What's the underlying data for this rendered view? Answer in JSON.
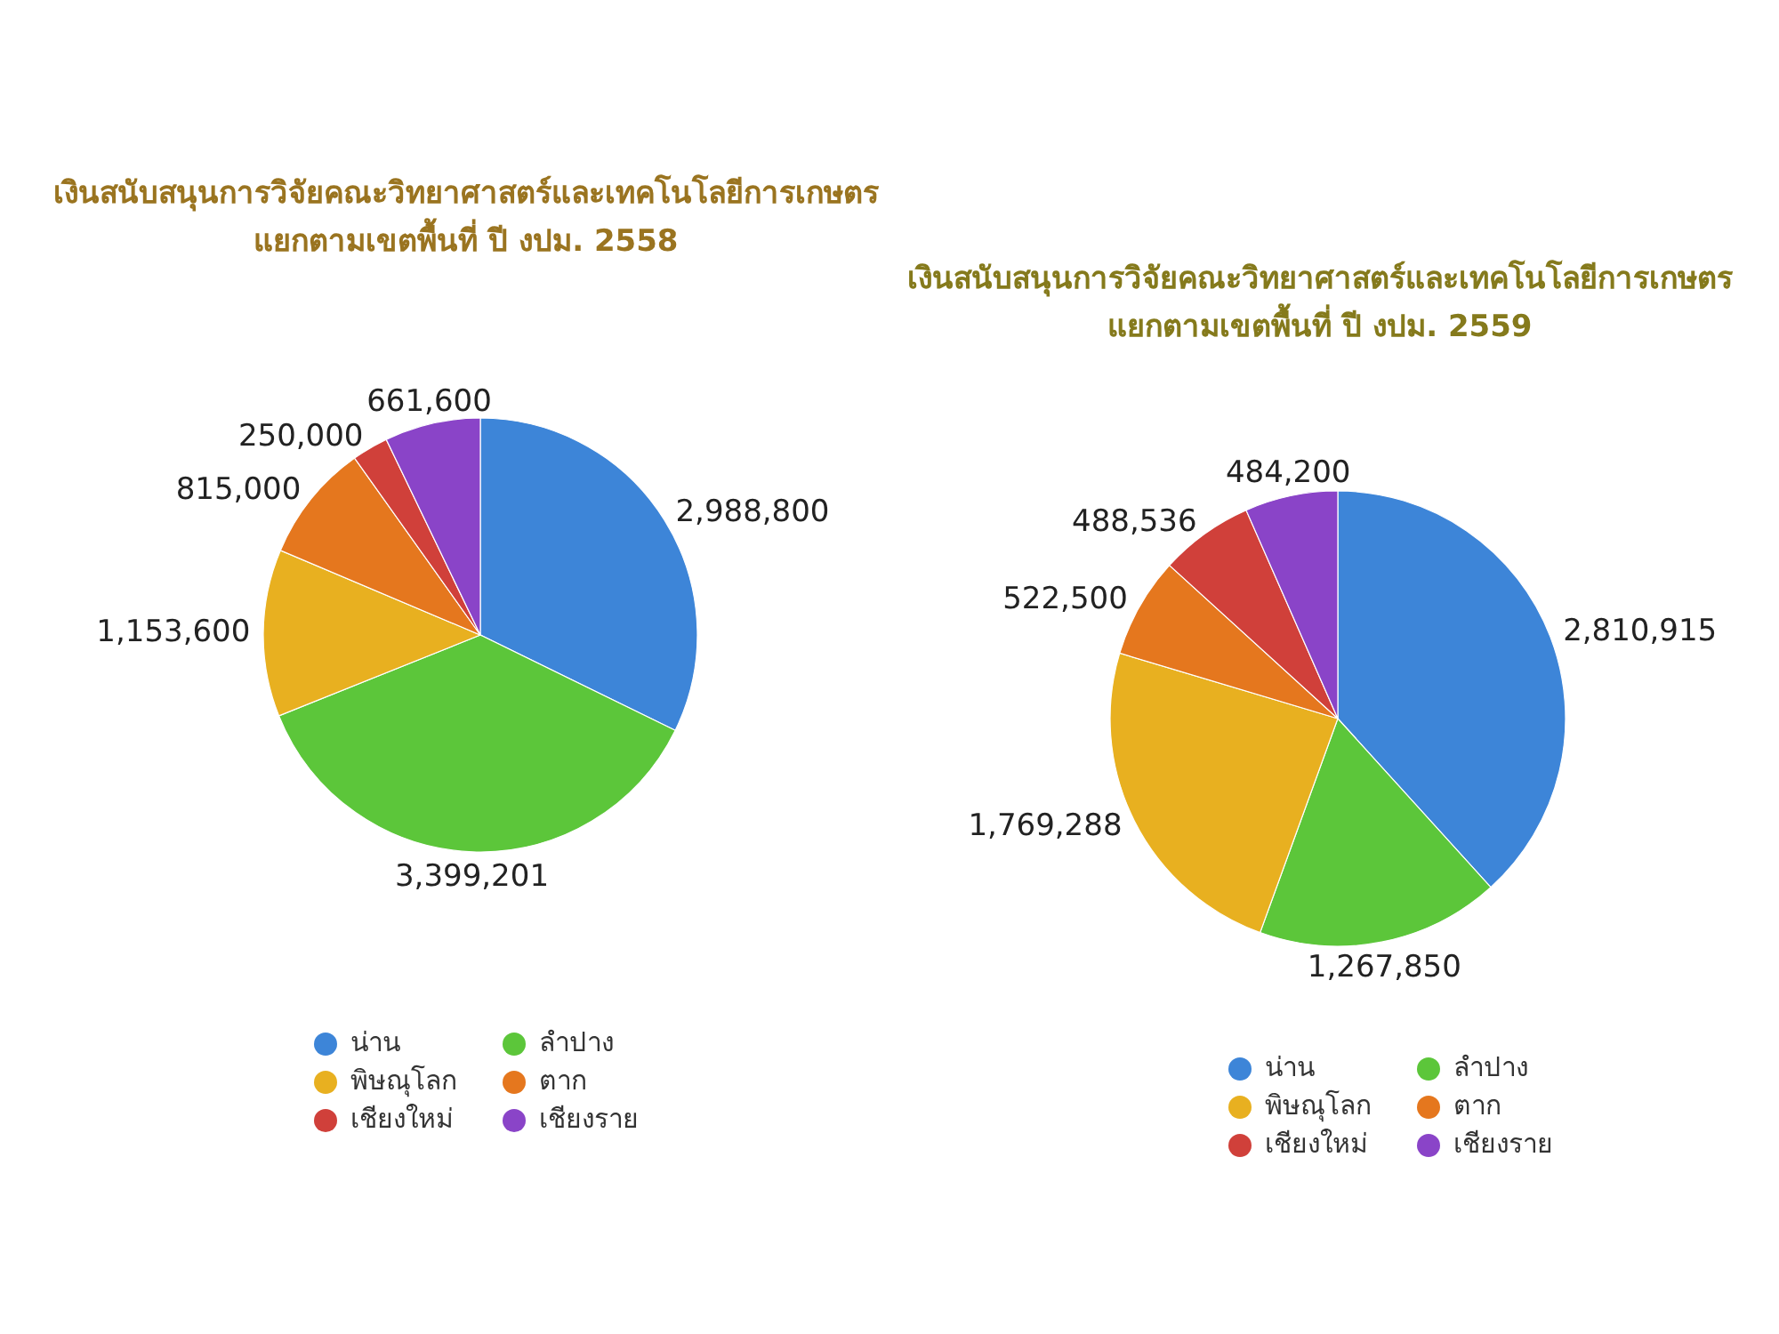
{
  "chart_data": [
    {
      "type": "pie",
      "title": "เงินสนับสนุนการวิจัยคณะวิทยาศาสตร์และเทคโนโลยีการเกษตร\nแยกตามเขตพื้นที่ ปี งปม. 2558",
      "categories": [
        "น่าน",
        "ลำปาง",
        "พิษณุโลก",
        "ตาก",
        "เชียงใหม่",
        "เชียงราย"
      ],
      "values": [
        2988800,
        3399201,
        1153600,
        815000,
        250000,
        661600
      ],
      "value_labels": [
        "2,988,800",
        "3,399,201",
        "1,153,600",
        "815,000",
        "250,000",
        "661,600"
      ],
      "colors": [
        "#3d85d8",
        "#5cc63a",
        "#e8b020",
        "#e5771e",
        "#d0403a",
        "#8a44c8"
      ],
      "legend": "bottom"
    },
    {
      "type": "pie",
      "title": "เงินสนับสนุนการวิจัยคณะวิทยาศาสตร์และเทคโนโลยีการเกษตร\nแยกตามเขตพื้นที่ ปี งปม. 2559",
      "categories": [
        "น่าน",
        "ลำปาง",
        "พิษณุโลก",
        "ตาก",
        "เชียงใหม่",
        "เชียงราย"
      ],
      "values": [
        2810915,
        1267850,
        1769288,
        522500,
        488536,
        484200
      ],
      "value_labels": [
        "2,810,915",
        "1,267,850",
        "1,769,288",
        "522,500",
        "488,536",
        "484,200"
      ],
      "colors": [
        "#3d85d8",
        "#5cc63a",
        "#e8b020",
        "#e5771e",
        "#d0403a",
        "#8a44c8"
      ],
      "legend": "bottom"
    }
  ]
}
